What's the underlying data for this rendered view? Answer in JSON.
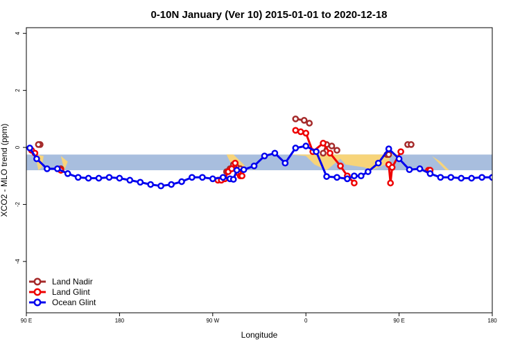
{
  "chart_data": {
    "type": "line",
    "title": "0-10N January (Ver 10)   2015-01-01 to 2020-12-18",
    "xlabel": "Longitude",
    "ylabel": "XCO2 - MLO trend (ppm)",
    "xlim": [
      -90,
      180
    ],
    "ylim": [
      -5.8,
      4.2
    ],
    "x_ticks": [
      {
        "value": -90,
        "label": "90 E"
      },
      {
        "value": -36,
        "label": "180"
      },
      {
        "value": 18,
        "label": "90 W"
      },
      {
        "value": 72,
        "label": "0"
      },
      {
        "value": 126,
        "label": "90 E"
      },
      {
        "value": 180,
        "label": "180"
      }
    ],
    "y_ticks": [
      {
        "value": -4,
        "label": "-4"
      },
      {
        "value": -2,
        "label": "-2"
      },
      {
        "value": 0,
        "label": "0"
      },
      {
        "value": 2,
        "label": "2"
      },
      {
        "value": 4,
        "label": "4"
      }
    ],
    "band": {
      "y_top": -0.25,
      "y_bottom": -0.8,
      "color": "#a8bede"
    },
    "land_color": "#f7d47a",
    "land_patches": [
      {
        "x": [
          -85,
          -80,
          -81,
          -83
        ],
        "y": [
          -0.25,
          -0.3,
          -0.7,
          -0.8
        ]
      },
      {
        "x": [
          -70,
          -66,
          -68
        ],
        "y": [
          -0.3,
          -0.5,
          -0.8
        ]
      },
      {
        "x": [
          26,
          30,
          36,
          38,
          34,
          28
        ],
        "y": [
          -0.25,
          -0.25,
          -0.6,
          -0.8,
          -0.8,
          -0.5
        ]
      },
      {
        "x": [
          40,
          43,
          42
        ],
        "y": [
          -0.7,
          -0.72,
          -0.8
        ]
      },
      {
        "x": [
          62,
          68,
          98,
          121,
          120,
          110,
          106,
          95,
          92,
          84,
          77,
          72
        ],
        "y": [
          -0.25,
          -0.25,
          -0.25,
          -0.25,
          -0.55,
          -0.8,
          -0.7,
          -0.6,
          -0.4,
          -0.8,
          -0.6,
          -0.3
        ]
      },
      {
        "x": [
          122,
          125,
          128,
          130,
          132
        ],
        "y": [
          -0.25,
          -0.3,
          -0.5,
          -0.7,
          -0.8
        ]
      },
      {
        "x": [
          145,
          150,
          155,
          153
        ],
        "y": [
          -0.3,
          -0.5,
          -0.8,
          -0.8
        ]
      }
    ],
    "series": [
      {
        "name": "Land Nadir",
        "color": "#a52a2a",
        "lines": [
          {
            "x": [
              -82,
              -83
            ],
            "y": [
              0.1,
              0.1
            ]
          },
          {
            "x": [
              -70,
              -70
            ],
            "y": [
              -0.75,
              -0.75
            ]
          },
          {
            "x": [
              26,
              28,
              30,
              32,
              34
            ],
            "y": [
              -0.85,
              -0.75,
              -0.6,
              -0.7,
              -0.75
            ]
          },
          {
            "x": [
              66,
              71,
              74
            ],
            "y": [
              1.0,
              0.95,
              0.85
            ]
          },
          {
            "x": [
              82,
              84,
              87,
              90
            ],
            "y": [
              -0.2,
              0.1,
              0.05,
              -0.1
            ]
          },
          {
            "x": [
              119,
              120
            ],
            "y": [
              -0.25,
              -0.25
            ]
          },
          {
            "x": [
              131,
              133
            ],
            "y": [
              0.1,
              0.1
            ]
          }
        ]
      },
      {
        "name": "Land Glint",
        "color": "#ee0000",
        "lines": [
          {
            "x": [
              -87,
              -85
            ],
            "y": [
              -0.1,
              -0.2
            ]
          },
          {
            "x": [
              -70,
              -70
            ],
            "y": [
              -0.8,
              -0.8
            ]
          },
          {
            "x": [
              21,
              23,
              25,
              27,
              29,
              31,
              33
            ],
            "y": [
              -1.15,
              -1.15,
              -1.1,
              -0.85,
              -0.75,
              -0.55,
              -0.9
            ]
          },
          {
            "x": [
              34,
              35
            ],
            "y": [
              -1.0,
              -1.0
            ]
          },
          {
            "x": [
              66,
              69,
              72,
              76,
              82,
              86,
              92,
              96,
              100
            ],
            "y": [
              0.6,
              0.55,
              0.5,
              -0.15,
              0.15,
              -0.2,
              -0.65,
              -1.0,
              -1.25
            ]
          },
          {
            "x": [
              120,
              121,
              122,
              127
            ],
            "y": [
              -0.6,
              -1.25,
              -0.7,
              -0.15
            ]
          },
          {
            "x": [
              143,
              144
            ],
            "y": [
              -0.8,
              -0.8
            ]
          }
        ]
      },
      {
        "name": "Ocean Glint",
        "color": "#0000ee",
        "lines": [
          {
            "x": [
              -88,
              -84,
              -78,
              -72,
              -66,
              -60,
              -54,
              -48,
              -42,
              -36,
              -30,
              -24,
              -18,
              -12,
              -6,
              0,
              6,
              12,
              18,
              24,
              28,
              30,
              32,
              36,
              42,
              48,
              54,
              60,
              66,
              72,
              78,
              84,
              90,
              96,
              100,
              104,
              108,
              114,
              120,
              126,
              132,
              138,
              144,
              150,
              156,
              162,
              168,
              174,
              180
            ],
            "y": [
              -0.02,
              -0.4,
              -0.75,
              -0.75,
              -0.92,
              -1.05,
              -1.08,
              -1.08,
              -1.05,
              -1.08,
              -1.15,
              -1.22,
              -1.3,
              -1.35,
              -1.3,
              -1.2,
              -1.05,
              -1.05,
              -1.1,
              -1.05,
              -1.1,
              -1.12,
              -0.8,
              -0.78,
              -0.65,
              -0.3,
              -0.2,
              -0.55,
              -0.02,
              0.05,
              -0.15,
              -1.02,
              -1.05,
              -1.1,
              -1.0,
              -1.0,
              -0.85,
              -0.55,
              -0.05,
              -0.4,
              -0.78,
              -0.75,
              -0.92,
              -1.05,
              -1.05,
              -1.08,
              -1.08,
              -1.05,
              -1.05
            ]
          }
        ]
      }
    ],
    "legend": {
      "position": "bottom-left",
      "entries": [
        "Land Nadir",
        "Land Glint",
        "Ocean Glint"
      ]
    }
  }
}
